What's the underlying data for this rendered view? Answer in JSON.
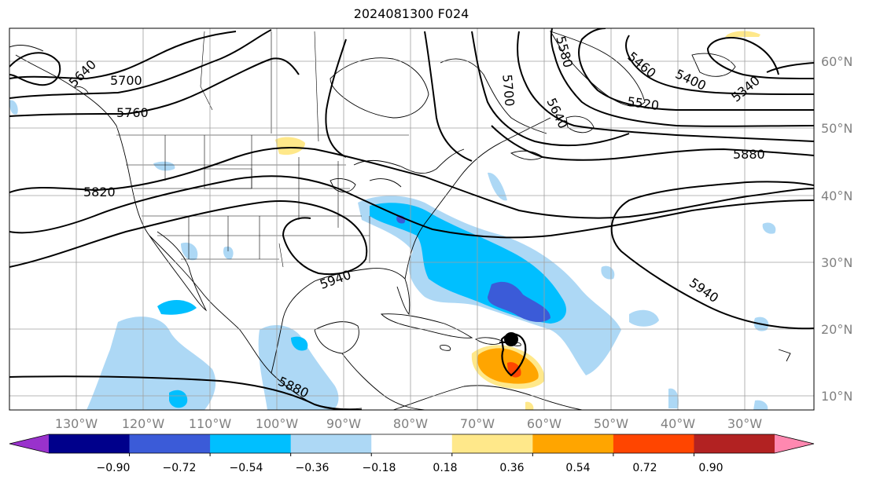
{
  "title": "2024081300 F024",
  "lon_labels": [
    "130°W",
    "120°W",
    "110°W",
    "100°W",
    "90°W",
    "80°W",
    "70°W",
    "60°W",
    "50°W",
    "40°W",
    "30°W"
  ],
  "lat_labels": [
    "60°N",
    "50°N",
    "40°N",
    "30°N",
    "20°N",
    "10°N"
  ],
  "contour_labels": [
    "5640",
    "5700",
    "5760",
    "5820",
    "5940",
    "5880",
    "5580",
    "5700",
    "5640",
    "5460",
    "5400",
    "5340",
    "5520",
    "5880",
    "5940"
  ],
  "colorbar": {
    "ticks": [
      "−0.90",
      "−0.72",
      "−0.54",
      "−0.36",
      "−0.18",
      "0.18",
      "0.36",
      "0.54",
      "0.72",
      "0.90"
    ],
    "colors": [
      "#9932cc",
      "#00008b",
      "#3b5bd8",
      "#00bfff",
      "#add8f5",
      "#ffffff",
      "#ffe88a",
      "#ffa500",
      "#ff4500",
      "#b22222",
      "#ff88b0"
    ]
  }
}
